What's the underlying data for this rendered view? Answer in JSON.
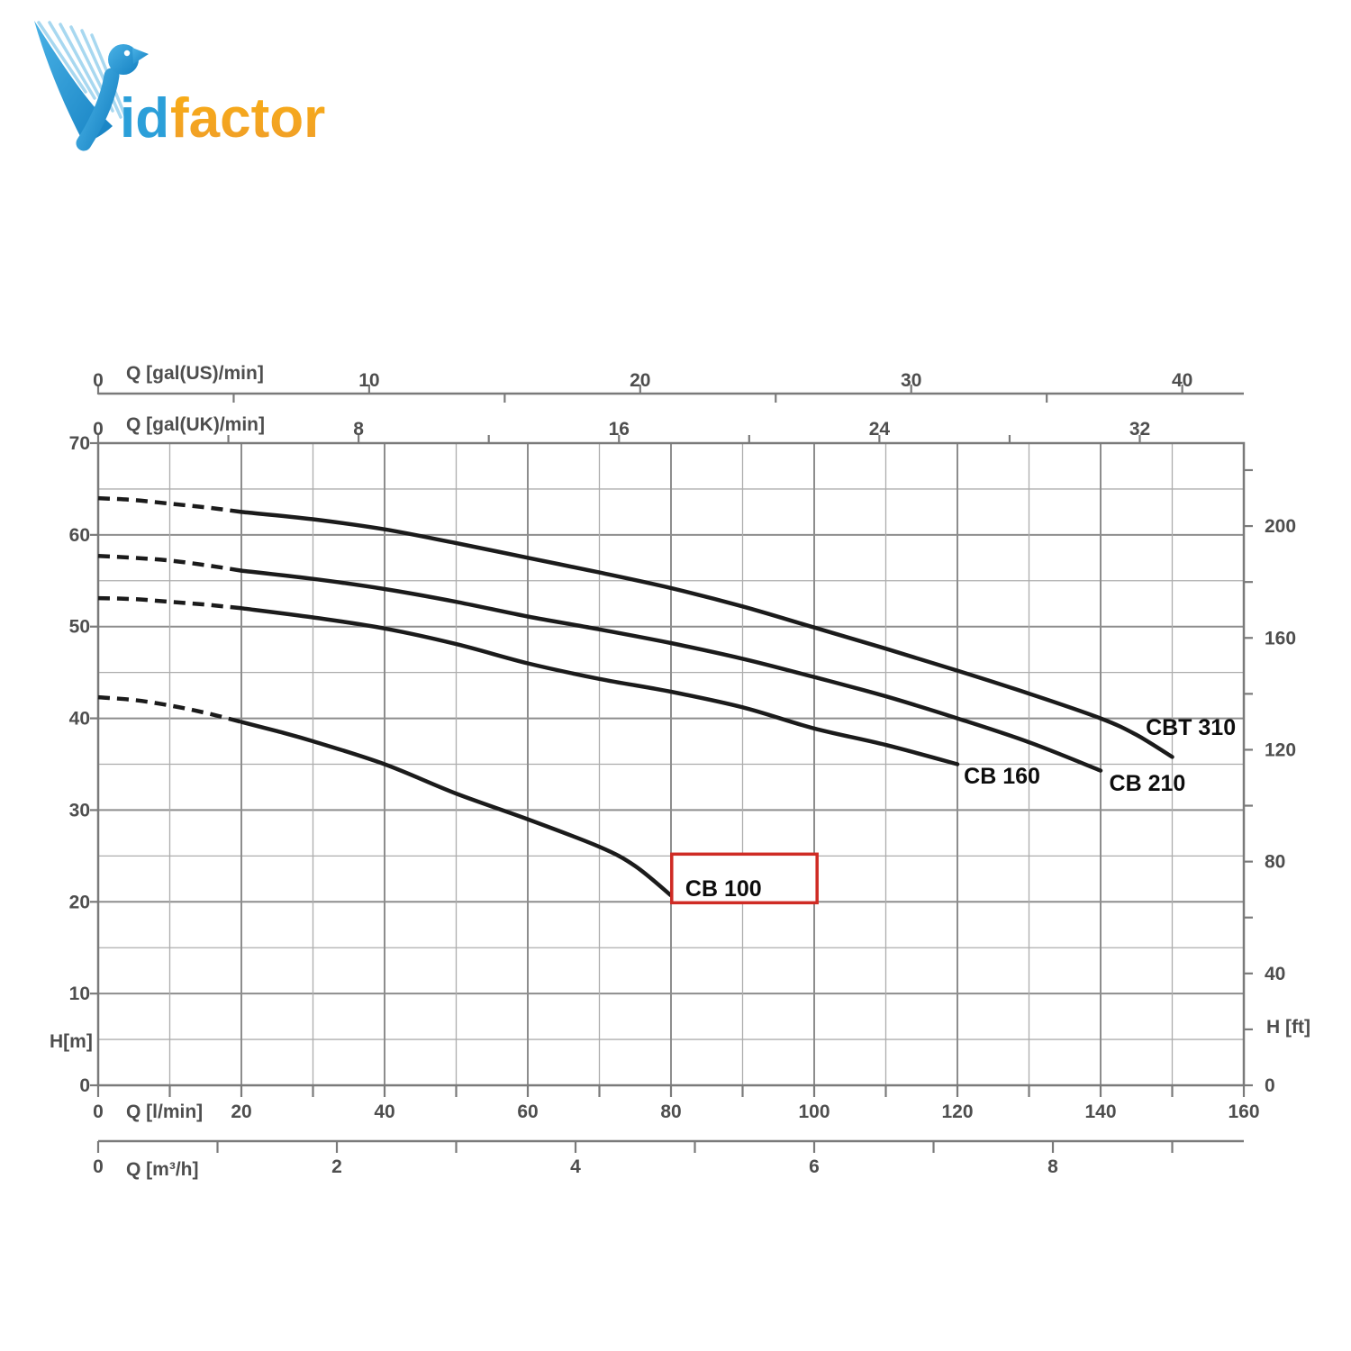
{
  "logo": {
    "id_text": "id",
    "factor_text": "factor"
  },
  "chart_data": {
    "type": "line",
    "plot": {
      "x_unit": "l/min",
      "x_min": 0,
      "x_max": 160,
      "y_unit": "m",
      "y_min": 0,
      "y_max": 70,
      "grid": {
        "x_minor_step": 10,
        "x_major_step": 20,
        "y_minor_step": 5,
        "y_major_step": 10
      }
    },
    "axes": {
      "top_outer": {
        "title": "Q [gal(US)/min]",
        "tick_step": 5,
        "labels": [
          0,
          10,
          20,
          30,
          40
        ],
        "lmin_per_unit": 3.785
      },
      "top_inner": {
        "title": "Q [gal(UK)/min]",
        "tick_step": 4,
        "labels": [
          0,
          8,
          16,
          24,
          32
        ],
        "lmin_per_unit": 4.546
      },
      "bottom_inner": {
        "title": "Q [l/min]",
        "tick_step": 10,
        "labels": [
          0,
          20,
          40,
          60,
          80,
          100,
          120,
          140,
          160
        ],
        "lmin_per_unit": 1
      },
      "bottom_outer": {
        "title": "Q [m³/h]",
        "tick_step": 1,
        "tick_max": 9,
        "labels": [
          0,
          2,
          4,
          6,
          8
        ],
        "lmin_per_unit": 16.667
      },
      "left": {
        "title": "H[m]",
        "labels": [
          0,
          10,
          20,
          30,
          40,
          50,
          60,
          70
        ]
      },
      "right": {
        "title": "H [ft]",
        "tick_step": 20,
        "tick_max": 220,
        "labels": [
          0,
          40,
          80,
          120,
          160,
          200
        ],
        "m_per_unit": 0.3048
      }
    },
    "series": [
      {
        "name": "CBT 310",
        "dash_until": 20,
        "label_at": {
          "q": 146.3,
          "h": 38.2
        },
        "points": [
          [
            0,
            64
          ],
          [
            5,
            63.8
          ],
          [
            10,
            63.4
          ],
          [
            15,
            63
          ],
          [
            20,
            62.5
          ],
          [
            30,
            61.7
          ],
          [
            40,
            60.6
          ],
          [
            50,
            59.1
          ],
          [
            60,
            57.5
          ],
          [
            70,
            55.9
          ],
          [
            80,
            54.2
          ],
          [
            90,
            52.2
          ],
          [
            100,
            49.9
          ],
          [
            110,
            47.6
          ],
          [
            120,
            45.2
          ],
          [
            130,
            42.7
          ],
          [
            140,
            40
          ],
          [
            145,
            38.2
          ],
          [
            150,
            35.8
          ]
        ]
      },
      {
        "name": "CB 210",
        "dash_until": 20,
        "label_at": {
          "q": 141.2,
          "h": 32.1
        },
        "points": [
          [
            0,
            57.7
          ],
          [
            5,
            57.5
          ],
          [
            10,
            57.2
          ],
          [
            15,
            56.7
          ],
          [
            20,
            56.1
          ],
          [
            30,
            55.2
          ],
          [
            40,
            54.1
          ],
          [
            50,
            52.7
          ],
          [
            60,
            51.1
          ],
          [
            70,
            49.7
          ],
          [
            80,
            48.2
          ],
          [
            90,
            46.5
          ],
          [
            100,
            44.5
          ],
          [
            110,
            42.4
          ],
          [
            120,
            40
          ],
          [
            130,
            37.4
          ],
          [
            140,
            34.3
          ]
        ]
      },
      {
        "name": "CB 160",
        "dash_until": 20,
        "label_at": {
          "q": 120.9,
          "h": 32.9
        },
        "points": [
          [
            0,
            53.1
          ],
          [
            5,
            53
          ],
          [
            10,
            52.7
          ],
          [
            15,
            52.4
          ],
          [
            20,
            52
          ],
          [
            30,
            51
          ],
          [
            40,
            49.8
          ],
          [
            50,
            48.1
          ],
          [
            60,
            46
          ],
          [
            70,
            44.3
          ],
          [
            80,
            42.9
          ],
          [
            90,
            41.2
          ],
          [
            100,
            38.9
          ],
          [
            110,
            37.1
          ],
          [
            120,
            35
          ]
        ]
      },
      {
        "name": "CB 100",
        "dash_until": 20,
        "label_at": {
          "q": 82,
          "h": 20.6
        },
        "points": [
          [
            0,
            42.3
          ],
          [
            5,
            42
          ],
          [
            10,
            41.4
          ],
          [
            15,
            40.6
          ],
          [
            20,
            39.6
          ],
          [
            25,
            38.6
          ],
          [
            30,
            37.5
          ],
          [
            40,
            35
          ],
          [
            50,
            31.8
          ],
          [
            60,
            29
          ],
          [
            70,
            26
          ],
          [
            75,
            23.9
          ],
          [
            80,
            20.7
          ]
        ]
      }
    ],
    "annotation": {
      "kind": "highlight-box",
      "q1": 80.1,
      "q2": 100.4,
      "h_bottom": 19.9,
      "h_top": 25.2,
      "stroke": "#cf2b24"
    },
    "colors": {
      "curve": "#1b1b1b",
      "grid_minor": "#adadad",
      "grid_major": "#8d8d8d",
      "border": "#7a7a7a",
      "axis_text": "#4e4e4e",
      "curve_label": "#0d0d0d",
      "logo_blue": "#2b9fd9",
      "logo_orange": "#f5a71c",
      "highlight": "#cf2b24"
    }
  }
}
